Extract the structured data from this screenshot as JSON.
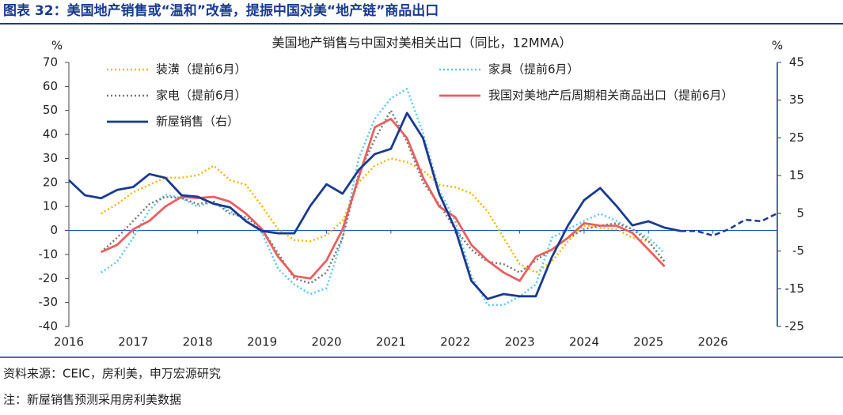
{
  "figure_title": "图表 32：美国地产销售或“温和”改善，提振中国对美“地产链”商品出口",
  "notes": [
    "资料来源：CEIC，房利美，申万宏源研究",
    "注：新屋销售预测采用房利美数据"
  ],
  "chart_data": {
    "type": "line",
    "title": "美国地产销售与中国对美相关出口（同比，12MMA）",
    "y_label": "%",
    "y2_label": "%",
    "x": [
      2016,
      2016.25,
      2016.5,
      2016.75,
      2017,
      2017.25,
      2017.5,
      2017.75,
      2018,
      2018.25,
      2018.5,
      2018.75,
      2019,
      2019.25,
      2019.5,
      2019.75,
      2020,
      2020.25,
      2020.5,
      2020.75,
      2021,
      2021.25,
      2021.5,
      2021.75,
      2022,
      2022.25,
      2022.5,
      2022.75,
      2023,
      2023.25,
      2023.5,
      2023.75,
      2024,
      2024.25,
      2024.5,
      2024.75,
      2025,
      2025.25,
      2025.5,
      2025.75,
      2026,
      2026.25,
      2026.5,
      2026.75,
      2027
    ],
    "xlim": [
      2016,
      2027
    ],
    "xticks": [
      2016,
      2017,
      2018,
      2019,
      2020,
      2021,
      2022,
      2023,
      2024,
      2025,
      2026
    ],
    "ylim": [
      -40,
      70
    ],
    "yticks": [
      70,
      60,
      50,
      40,
      30,
      20,
      10,
      0,
      -10,
      -20,
      -30,
      -40
    ],
    "y2lim": [
      -25,
      45
    ],
    "y2ticks": [
      45,
      35,
      25,
      15,
      5,
      -5,
      -15,
      -25
    ],
    "series": [
      {
        "name": "装潢（提前6月）",
        "color": "#f5b800",
        "style": "dotted",
        "values": [
          null,
          null,
          7,
          11,
          16,
          19,
          22,
          22,
          23,
          27,
          21,
          19,
          10,
          0.5,
          -4,
          -4.5,
          -2,
          4,
          20,
          27,
          30,
          28.5,
          25,
          19,
          18,
          15.5,
          8,
          -3,
          -14,
          -17.5,
          -13,
          -4.5,
          2,
          1,
          0.5,
          -3,
          -4.5,
          -13,
          null,
          null,
          null,
          null,
          null,
          null,
          null
        ]
      },
      {
        "name": "家具（提前6月）",
        "color": "#5bc8e8",
        "style": "dotted",
        "values": [
          null,
          null,
          -17.5,
          -13,
          -3,
          8.5,
          15,
          13.5,
          10,
          12,
          8,
          4.5,
          -1,
          -16,
          -22.5,
          -26.5,
          -24,
          -3,
          30,
          46.5,
          55,
          59,
          40.5,
          17,
          3.8,
          -19,
          -31,
          -31,
          -27.5,
          -22.5,
          -3,
          0.5,
          4,
          7,
          4,
          0.5,
          -3,
          -9.5,
          null,
          null,
          null,
          null,
          null,
          null,
          null
        ]
      },
      {
        "name": "家电（提前6月）",
        "color": "#777777",
        "style": "dotted",
        "values": [
          null,
          null,
          -9,
          -3,
          4,
          11,
          14,
          13.5,
          11,
          12,
          7,
          5.5,
          0.5,
          -9.5,
          -20,
          -22,
          -17.5,
          -3,
          23.5,
          38,
          50,
          37,
          20,
          11,
          0.5,
          -8,
          -13,
          -14,
          -17.5,
          -12.5,
          -8,
          -3,
          0.5,
          2,
          3,
          0.5,
          -4.5,
          -13,
          null,
          null,
          null,
          null,
          null,
          null,
          null
        ]
      },
      {
        "name": "我国对美地产后周期相关商品出口（提前6月）",
        "color": "#e86060",
        "style": "solid",
        "values": [
          null,
          null,
          -9,
          -6,
          0.5,
          4,
          10,
          14,
          13.5,
          14,
          12,
          7,
          0.5,
          -11,
          -19,
          -20,
          -12.5,
          0.5,
          22,
          43,
          46.5,
          38.5,
          22,
          10,
          5.5,
          -6,
          -12.5,
          -17.5,
          -21,
          -11,
          -8,
          -3,
          3,
          2,
          2,
          -1,
          -8,
          -15,
          null,
          null,
          null,
          null,
          null,
          null,
          null
        ]
      },
      {
        "name": "新屋销售（右）",
        "color": "#1a3a8f",
        "style": "solid",
        "axis": "y2",
        "values": [
          13.8,
          9.8,
          9,
          11.2,
          12,
          15.4,
          14.4,
          9.8,
          9.4,
          7.5,
          6.6,
          2.9,
          0.3,
          -0.3,
          -0.3,
          7,
          12.7,
          10.2,
          16.5,
          20.7,
          22.1,
          31.6,
          24.9,
          10.2,
          0.8,
          -12.9,
          -17.7,
          -16.4,
          -17,
          -17,
          -6.6,
          1.8,
          8.5,
          11.7,
          7,
          1.8,
          2.9,
          1.2,
          0.3,
          null,
          null,
          null,
          null,
          null,
          null
        ]
      },
      {
        "color": "#1a3a8f",
        "style": "dashed",
        "axis": "y2",
        "values": [
          null,
          null,
          null,
          null,
          null,
          null,
          null,
          null,
          null,
          null,
          null,
          null,
          null,
          null,
          null,
          null,
          null,
          null,
          null,
          null,
          null,
          null,
          null,
          null,
          null,
          null,
          null,
          null,
          null,
          null,
          null,
          null,
          null,
          null,
          null,
          null,
          null,
          null,
          0.3,
          0.3,
          -0.9,
          0.8,
          3.3,
          2.9,
          5
        ]
      }
    ]
  }
}
